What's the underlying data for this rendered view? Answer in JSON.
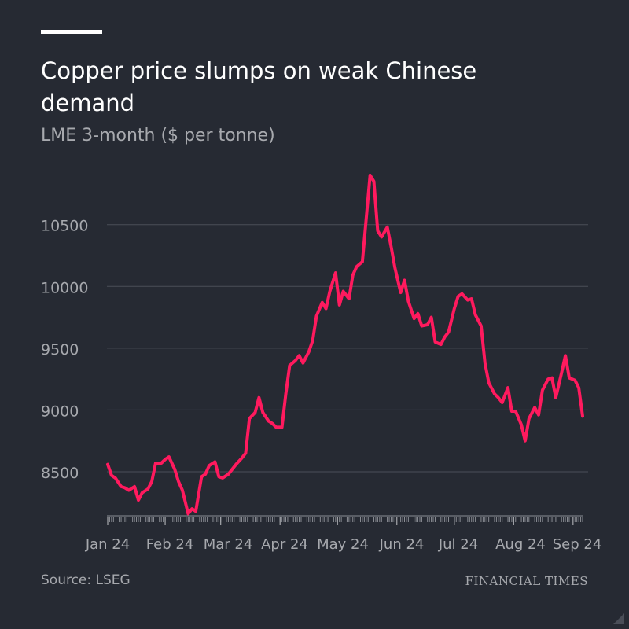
{
  "header": {
    "title": "Copper price slumps on weak Chinese demand",
    "subtitle": "LME 3-month ($ per tonne)"
  },
  "footer": {
    "source": "Source: LSEG",
    "brand": "FINANCIAL TIMES"
  },
  "colors": {
    "background": "#262a33",
    "line": "#ff1a5e",
    "grid": "#4a4e58",
    "muted_text": "#a7a9ae"
  },
  "chart_data": {
    "type": "line",
    "title": "Copper price slumps on weak Chinese demand",
    "subtitle": "LME 3-month ($ per tonne)",
    "xlabel": "",
    "ylabel": "",
    "grid": true,
    "x_ticks": [
      "Jan 24",
      "Feb 24",
      "Mar 24",
      "Apr 24",
      "May 24",
      "Jun 24",
      "Jul 24",
      "Aug 24",
      "Sep 24"
    ],
    "y_ticks": [
      8500,
      9000,
      9500,
      10000,
      10500
    ],
    "ylim": [
      8150,
      10950
    ],
    "xlim": [
      "2024-01-02",
      "2024-09-06"
    ],
    "series": [
      {
        "name": "LME 3-month copper",
        "x": [
          "2024-01-02",
          "2024-01-04",
          "2024-01-06",
          "2024-01-09",
          "2024-01-11",
          "2024-01-13",
          "2024-01-16",
          "2024-01-18",
          "2024-01-20",
          "2024-01-23",
          "2024-01-25",
          "2024-01-27",
          "2024-01-30",
          "2024-02-01",
          "2024-02-03",
          "2024-02-06",
          "2024-02-08",
          "2024-02-10",
          "2024-02-13",
          "2024-02-15",
          "2024-02-17",
          "2024-02-20",
          "2024-02-22",
          "2024-02-24",
          "2024-02-27",
          "2024-02-29",
          "2024-03-02",
          "2024-03-05",
          "2024-03-07",
          "2024-03-09",
          "2024-03-12",
          "2024-03-14",
          "2024-03-16",
          "2024-03-19",
          "2024-03-21",
          "2024-03-23",
          "2024-03-26",
          "2024-03-28",
          "2024-03-30",
          "2024-04-02",
          "2024-04-04",
          "2024-04-06",
          "2024-04-09",
          "2024-04-11",
          "2024-04-13",
          "2024-04-16",
          "2024-04-18",
          "2024-04-20",
          "2024-04-23",
          "2024-04-25",
          "2024-04-27",
          "2024-04-30",
          "2024-05-02",
          "2024-05-04",
          "2024-05-07",
          "2024-05-09",
          "2024-05-11",
          "2024-05-14",
          "2024-05-16",
          "2024-05-18",
          "2024-05-20",
          "2024-05-22",
          "2024-05-24",
          "2024-05-27",
          "2024-05-29",
          "2024-05-31",
          "2024-06-03",
          "2024-06-05",
          "2024-06-07",
          "2024-06-10",
          "2024-06-12",
          "2024-06-14",
          "2024-06-17",
          "2024-06-19",
          "2024-06-21",
          "2024-06-24",
          "2024-06-26",
          "2024-06-28",
          "2024-07-01",
          "2024-07-03",
          "2024-07-05",
          "2024-07-08",
          "2024-07-10",
          "2024-07-12",
          "2024-07-15",
          "2024-07-17",
          "2024-07-19",
          "2024-07-22",
          "2024-07-24",
          "2024-07-26",
          "2024-07-29",
          "2024-07-31",
          "2024-08-02",
          "2024-08-05",
          "2024-08-07",
          "2024-08-09",
          "2024-08-12",
          "2024-08-14",
          "2024-08-16",
          "2024-08-19",
          "2024-08-21",
          "2024-08-23",
          "2024-08-26",
          "2024-08-28",
          "2024-08-30",
          "2024-09-02",
          "2024-09-04",
          "2024-09-06"
        ],
        "values": [
          8560,
          8470,
          8450,
          8380,
          8370,
          8350,
          8380,
          8270,
          8330,
          8360,
          8420,
          8570,
          8570,
          8600,
          8620,
          8520,
          8420,
          8350,
          8160,
          8200,
          8180,
          8460,
          8480,
          8550,
          8580,
          8460,
          8450,
          8480,
          8520,
          8560,
          8610,
          8650,
          8930,
          8980,
          9100,
          8980,
          8910,
          8890,
          8860,
          8860,
          9130,
          9360,
          9400,
          9440,
          9380,
          9470,
          9560,
          9760,
          9870,
          9820,
          9960,
          10110,
          9850,
          9960,
          9900,
          10090,
          10160,
          10200,
          10550,
          10900,
          10850,
          10450,
          10400,
          10480,
          10320,
          10150,
          9950,
          10050,
          9880,
          9740,
          9780,
          9680,
          9690,
          9750,
          9550,
          9530,
          9590,
          9630,
          9820,
          9920,
          9940,
          9890,
          9900,
          9770,
          9680,
          9380,
          9220,
          9130,
          9100,
          9060,
          9180,
          8990,
          8990,
          8880,
          8750,
          8930,
          9020,
          8960,
          9160,
          9250,
          9260,
          9100,
          9300,
          9440,
          9260,
          9240,
          9180,
          8950
        ]
      }
    ]
  }
}
